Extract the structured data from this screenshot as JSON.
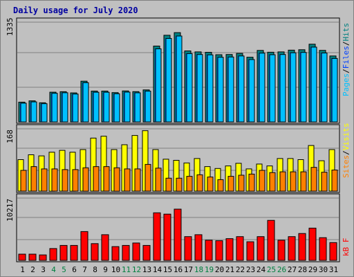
{
  "title": "Daily usage for July 2020",
  "colors": {
    "frame": "#c0c0c0",
    "title": "#0000a0",
    "hits": "#008080",
    "files": "#0040ff",
    "pages": "#00c0ff",
    "visits": "#ffff00",
    "sites": "#ff8000",
    "kbytes": "#ff0000",
    "weekend": "#008040",
    "weekday": "#000000"
  },
  "chart_data": [
    {
      "type": "bar",
      "panel": "hits-files-pages",
      "ymax_label": "1335",
      "ymax": 1335,
      "legend": [
        "Pages",
        "/",
        "Files",
        "/",
        "Hits"
      ],
      "x": [
        "1",
        "2",
        "3",
        "4",
        "5",
        "6",
        "7",
        "8",
        "9",
        "10",
        "11",
        "12",
        "13",
        "14",
        "15",
        "16",
        "17",
        "18",
        "19",
        "20",
        "21",
        "22",
        "23",
        "24",
        "25",
        "26",
        "27",
        "28",
        "29",
        "30",
        "31"
      ],
      "series": [
        {
          "name": "Hits",
          "values": [
            264,
            282,
            256,
            398,
            404,
            388,
            545,
            413,
            413,
            392,
            414,
            405,
            428,
            1015,
            1160,
            1195,
            950,
            937,
            932,
            899,
            902,
            917,
            866,
            957,
            933,
            937,
            960,
            966,
            1040,
            958,
            883
          ]
        },
        {
          "name": "Files",
          "values": [
            250,
            268,
            244,
            383,
            390,
            373,
            525,
            397,
            397,
            376,
            399,
            389,
            412,
            978,
            1117,
            1150,
            914,
            902,
            897,
            865,
            869,
            883,
            834,
            921,
            899,
            902,
            925,
            930,
            1001,
            922,
            849
          ]
        },
        {
          "name": "Pages",
          "values": [
            250,
            268,
            244,
            383,
            390,
            373,
            525,
            397,
            397,
            376,
            399,
            389,
            412,
            978,
            1117,
            1150,
            914,
            902,
            897,
            865,
            869,
            883,
            834,
            921,
            899,
            902,
            925,
            930,
            1001,
            922,
            849
          ]
        }
      ]
    },
    {
      "type": "bar",
      "panel": "visits-sites",
      "ymax_label": "168",
      "ymax": 168,
      "legend": [
        "Sites",
        "/",
        "Visits"
      ],
      "x": [
        "1",
        "2",
        "3",
        "4",
        "5",
        "6",
        "7",
        "8",
        "9",
        "10",
        "11",
        "12",
        "13",
        "14",
        "15",
        "16",
        "17",
        "18",
        "19",
        "20",
        "21",
        "22",
        "23",
        "24",
        "25",
        "26",
        "27",
        "28",
        "29",
        "30",
        "31"
      ],
      "series": [
        {
          "name": "Visits",
          "values": [
            85,
            98,
            95,
            105,
            110,
            105,
            112,
            143,
            148,
            112,
            125,
            150,
            163,
            112,
            86,
            83,
            76,
            88,
            66,
            61,
            68,
            75,
            60,
            73,
            68,
            88,
            88,
            85,
            123,
            82,
            112
          ]
        },
        {
          "name": "Sites",
          "values": [
            56,
            66,
            60,
            60,
            58,
            58,
            63,
            66,
            66,
            63,
            60,
            60,
            72,
            62,
            35,
            35,
            40,
            44,
            38,
            31,
            40,
            43,
            46,
            56,
            50,
            52,
            52,
            52,
            64,
            51,
            57
          ]
        }
      ]
    },
    {
      "type": "bar",
      "panel": "kbytes",
      "ymax_label": "10217",
      "ymax": 10217,
      "legend": [
        "kB",
        "F"
      ],
      "x": [
        "1",
        "2",
        "3",
        "4",
        "5",
        "6",
        "7",
        "8",
        "9",
        "10",
        "11",
        "12",
        "13",
        "14",
        "15",
        "16",
        "17",
        "18",
        "19",
        "20",
        "21",
        "22",
        "23",
        "24",
        "25",
        "26",
        "27",
        "28",
        "29",
        "30",
        "31"
      ],
      "series": [
        {
          "name": "kB F",
          "values": [
            1020,
            1020,
            900,
            1940,
            2450,
            2450,
            4720,
            2750,
            4210,
            2260,
            2450,
            2850,
            2450,
            7800,
            7580,
            8400,
            3890,
            4210,
            3300,
            3220,
            3560,
            3890,
            3050,
            3890,
            6560,
            3300,
            3890,
            4400,
            5290,
            3720,
            2920
          ]
        }
      ]
    }
  ],
  "weekend_days": [
    "4",
    "5",
    "11",
    "12",
    "18",
    "19",
    "25",
    "26"
  ]
}
